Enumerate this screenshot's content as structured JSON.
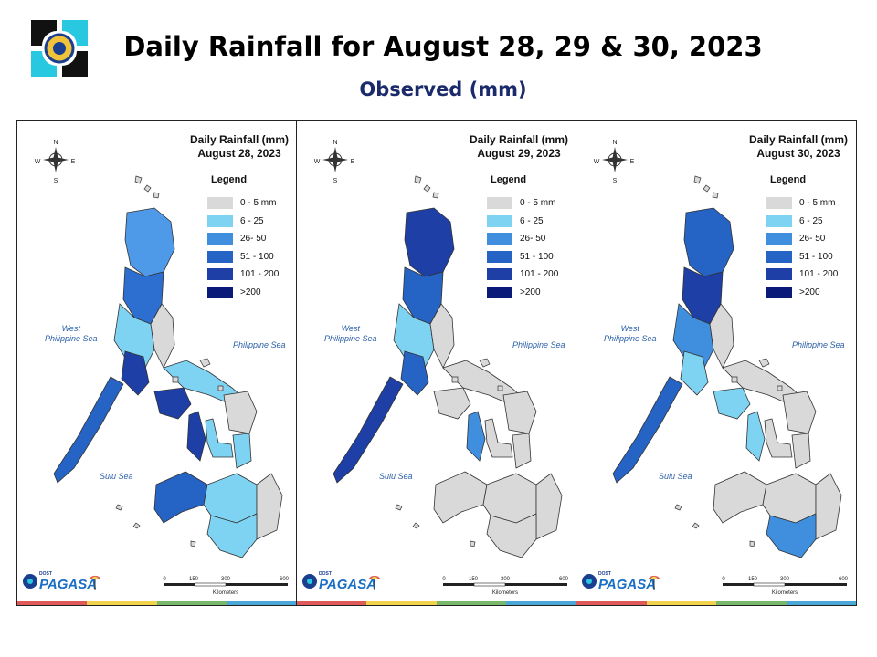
{
  "header": {
    "title": "Daily Rainfall for August 28, 29 & 30, 2023",
    "subtitle": "Observed (mm)"
  },
  "legend": {
    "title": "Legend",
    "items": [
      {
        "label": "0 - 5 mm",
        "color": "#d9d9d9"
      },
      {
        "label": "6 - 25",
        "color": "#7fd3f2"
      },
      {
        "label": "26- 50",
        "color": "#3f8fde"
      },
      {
        "label": "51 - 100",
        "color": "#2563c4"
      },
      {
        "label": "101 - 200",
        "color": "#1d3fa6"
      },
      {
        "label": ">200",
        "color": "#0a1a78"
      }
    ]
  },
  "panels": [
    {
      "title_line1": "Daily Rainfall (mm)",
      "title_line2": "August 28, 2023",
      "regions": {
        "north": "#4f9ae8",
        "cordillera": "#2c6fd0",
        "luzon_w": "#7fd3f2",
        "luzon_e": "#d9d9d9",
        "bicol": "#7fd3f2",
        "mindoro": "#1d3fa6",
        "palawan": "#2563c4",
        "panay": "#1d3fa6",
        "negros": "#1d3fa6",
        "samar": "#d9d9d9",
        "leyte": "#7fd3f2",
        "cebu_bohol": "#7fd3f2",
        "mindanao_w": "#2563c4",
        "mindanao_c": "#7fd3f2",
        "mindanao_e": "#d9d9d9",
        "mindanao_s": "#7fd3f2"
      }
    },
    {
      "title_line1": "Daily Rainfall (mm)",
      "title_line2": "August 29, 2023",
      "regions": {
        "north": "#1d3fa6",
        "cordillera": "#2563c4",
        "luzon_w": "#7fd3f2",
        "luzon_e": "#d9d9d9",
        "bicol": "#d9d9d9",
        "mindoro": "#2563c4",
        "palawan": "#1d3fa6",
        "panay": "#d9d9d9",
        "negros": "#3f8fde",
        "samar": "#d9d9d9",
        "leyte": "#d9d9d9",
        "cebu_bohol": "#d9d9d9",
        "mindanao_w": "#d9d9d9",
        "mindanao_c": "#d9d9d9",
        "mindanao_e": "#d9d9d9",
        "mindanao_s": "#d9d9d9"
      }
    },
    {
      "title_line1": "Daily Rainfall (mm)",
      "title_line2": "August 30, 2023",
      "regions": {
        "north": "#2563c4",
        "cordillera": "#1d3fa6",
        "luzon_w": "#3f8fde",
        "luzon_e": "#d9d9d9",
        "bicol": "#d9d9d9",
        "mindoro": "#7fd3f2",
        "palawan": "#2563c4",
        "panay": "#7fd3f2",
        "negros": "#7fd3f2",
        "samar": "#d9d9d9",
        "leyte": "#d9d9d9",
        "cebu_bohol": "#d9d9d9",
        "mindanao_w": "#d9d9d9",
        "mindanao_c": "#d9d9d9",
        "mindanao_e": "#d9d9d9",
        "mindanao_s": "#3f8fde"
      }
    }
  ],
  "labels": {
    "west_sea_line1": "West",
    "west_sea_line2": "Philippine Sea",
    "east_sea": "Philippine Sea",
    "sulu_sea": "Sulu Sea",
    "compass_n": "N",
    "compass_s": "S",
    "compass_e": "E",
    "compass_w": "W",
    "scale_ticks": [
      "0",
      "150",
      "300",
      "600"
    ],
    "scale_unit": "Kilometers",
    "pagasa_text": "PAGASA",
    "pagasa_dost": "DOST"
  },
  "stripe_colors": [
    "#e05a5a",
    "#f2d24b",
    "#77b86a",
    "#4aa8d8"
  ]
}
